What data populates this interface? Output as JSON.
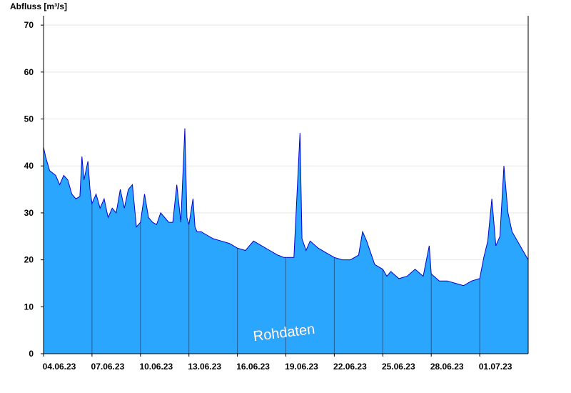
{
  "chart_data": {
    "type": "area",
    "ylabel": "Abfluss [m³/s]",
    "watermark": "Rohdaten",
    "ylim": [
      0,
      72
    ],
    "yticks": [
      0,
      10,
      20,
      30,
      40,
      50,
      60,
      70
    ],
    "xlim": [
      "2023-06-04",
      "2023-07-04"
    ],
    "xticks": [
      "2023-06-04",
      "2023-06-07",
      "2023-06-10",
      "2023-06-13",
      "2023-06-16",
      "2023-06-19",
      "2023-06-22",
      "2023-06-25",
      "2023-06-28",
      "2023-07-01"
    ],
    "xtick_labels": [
      "04.06.23",
      "07.06.23",
      "10.06.23",
      "13.06.23",
      "16.06.23",
      "19.06.23",
      "22.06.23",
      "25.06.23",
      "28.06.23",
      "01.07.23"
    ],
    "grid": true,
    "colors": {
      "fill": "#2aa6ff",
      "line": "#0000d0",
      "grid": "#e8e8e8",
      "axis": "#000000",
      "day_line": "#1f5f9a"
    },
    "series": [
      {
        "x": [
          "2023-06-04 00:00",
          "2023-06-04 03:00",
          "2023-06-04 09:00",
          "2023-06-04 18:00",
          "2023-06-05 00:00",
          "2023-06-05 06:00",
          "2023-06-05 12:00",
          "2023-06-05 18:00",
          "2023-06-06 00:00",
          "2023-06-06 06:00",
          "2023-06-06 09:00",
          "2023-06-06 12:00",
          "2023-06-06 18:00",
          "2023-06-06 21:00",
          "2023-06-07 00:00",
          "2023-06-07 06:00",
          "2023-06-07 12:00",
          "2023-06-07 18:00",
          "2023-06-08 00:00",
          "2023-06-08 06:00",
          "2023-06-08 12:00",
          "2023-06-08 18:00",
          "2023-06-09 00:00",
          "2023-06-09 06:00",
          "2023-06-09 12:00",
          "2023-06-09 18:00",
          "2023-06-10 00:00",
          "2023-06-10 06:00",
          "2023-06-10 12:00",
          "2023-06-10 18:00",
          "2023-06-11 00:00",
          "2023-06-11 06:00",
          "2023-06-11 12:00",
          "2023-06-11 18:00",
          "2023-06-12 00:00",
          "2023-06-12 06:00",
          "2023-06-12 12:00",
          "2023-06-12 18:00",
          "2023-06-12 21:00",
          "2023-06-13 00:00",
          "2023-06-13 06:00",
          "2023-06-13 09:00",
          "2023-06-13 12:00",
          "2023-06-13 18:00",
          "2023-06-14 00:00",
          "2023-06-14 12:00",
          "2023-06-15 00:00",
          "2023-06-15 12:00",
          "2023-06-16 00:00",
          "2023-06-16 12:00",
          "2023-06-17 00:00",
          "2023-06-17 12:00",
          "2023-06-18 00:00",
          "2023-06-18 12:00",
          "2023-06-18 21:00",
          "2023-06-19 00:00",
          "2023-06-19 12:00",
          "2023-06-19 21:00",
          "2023-06-20 00:00",
          "2023-06-20 06:00",
          "2023-06-20 12:00",
          "2023-06-21 00:00",
          "2023-06-21 12:00",
          "2023-06-22 00:00",
          "2023-06-22 12:00",
          "2023-06-23 00:00",
          "2023-06-23 12:00",
          "2023-06-23 18:00",
          "2023-06-24 00:00",
          "2023-06-24 12:00",
          "2023-06-25 00:00",
          "2023-06-25 06:00",
          "2023-06-25 12:00",
          "2023-06-26 00:00",
          "2023-06-26 12:00",
          "2023-06-27 00:00",
          "2023-06-27 12:00",
          "2023-06-27 21:00",
          "2023-06-28 00:00",
          "2023-06-28 12:00",
          "2023-06-29 00:00",
          "2023-06-29 12:00",
          "2023-06-30 00:00",
          "2023-06-30 12:00",
          "2023-07-01 00:00",
          "2023-07-01 06:00",
          "2023-07-01 12:00",
          "2023-07-01 18:00",
          "2023-07-02 00:00",
          "2023-07-02 06:00",
          "2023-07-02 12:00",
          "2023-07-02 18:00",
          "2023-07-03 00:00",
          "2023-07-03 12:00",
          "2023-07-04 00:00"
        ],
        "y": [
          44,
          42,
          39,
          38,
          36,
          38,
          37,
          34,
          33,
          33.5,
          42,
          37,
          41,
          35,
          32,
          34,
          31,
          33,
          29,
          31,
          30,
          35,
          31,
          35,
          36,
          27,
          28,
          34,
          29,
          28,
          27.5,
          30,
          29,
          28,
          28,
          36,
          28,
          48,
          29,
          27.5,
          33,
          27,
          26,
          26,
          25.5,
          24.5,
          24,
          23.5,
          22.5,
          22,
          24,
          23,
          22,
          21,
          20.5,
          20.5,
          20.5,
          47,
          24.5,
          22,
          24,
          22.5,
          21.5,
          20.5,
          20,
          20,
          21,
          26,
          24,
          19,
          18,
          16.5,
          17.5,
          16,
          16.5,
          18,
          16.5,
          23,
          17,
          15.5,
          15.5,
          15,
          14.5,
          15.5,
          16,
          20.5,
          24,
          33,
          23,
          25,
          40,
          30,
          26,
          23,
          20
        ]
      }
    ]
  }
}
